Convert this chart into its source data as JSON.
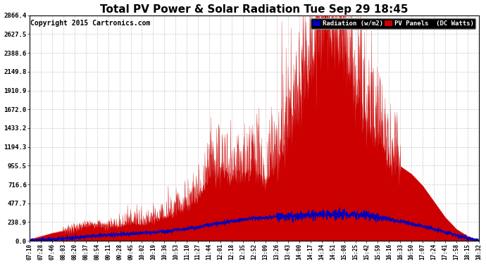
{
  "title": "Total PV Power & Solar Radiation Tue Sep 29 18:45",
  "copyright": "Copyright 2015 Cartronics.com",
  "legend_radiation": "Radiation (w/m2)",
  "legend_pv": "PV Panels  (DC Watts)",
  "legend_radiation_bg": "#0000bb",
  "legend_pv_bg": "#cc0000",
  "yticks": [
    0.0,
    238.9,
    477.7,
    716.6,
    955.5,
    1194.3,
    1433.2,
    1672.0,
    1910.9,
    2149.8,
    2388.6,
    2627.5,
    2866.4
  ],
  "ymax": 2866.4,
  "background_color": "#ffffff",
  "plot_bg": "#ffffff",
  "pv_color": "#cc0000",
  "radiation_color": "#0000bb",
  "grid_color": "#bbbbbb",
  "title_fontsize": 11,
  "copyright_fontsize": 7,
  "xtick_labels": [
    "07:10",
    "07:28",
    "07:46",
    "08:03",
    "08:20",
    "08:37",
    "08:54",
    "09:11",
    "09:28",
    "09:45",
    "10:02",
    "10:19",
    "10:36",
    "10:53",
    "11:10",
    "11:27",
    "11:44",
    "12:01",
    "12:18",
    "12:35",
    "12:52",
    "13:09",
    "13:26",
    "13:43",
    "14:00",
    "14:17",
    "14:34",
    "14:51",
    "15:08",
    "15:25",
    "15:42",
    "15:59",
    "16:16",
    "16:33",
    "16:50",
    "17:07",
    "17:24",
    "17:41",
    "17:58",
    "18:15",
    "18:32"
  ],
  "pv_values": [
    20,
    60,
    100,
    130,
    160,
    200,
    220,
    180,
    200,
    250,
    220,
    280,
    320,
    380,
    450,
    600,
    850,
    950,
    850,
    900,
    950,
    800,
    1050,
    1400,
    1900,
    2300,
    2866,
    2750,
    2600,
    2000,
    1600,
    1400,
    1100,
    950,
    850,
    700,
    500,
    300,
    150,
    60,
    10
  ],
  "rad_values": [
    5,
    10,
    20,
    30,
    40,
    55,
    65,
    75,
    85,
    90,
    100,
    110,
    120,
    135,
    155,
    175,
    200,
    230,
    250,
    270,
    285,
    295,
    305,
    310,
    320,
    330,
    335,
    340,
    340,
    330,
    320,
    300,
    275,
    250,
    220,
    185,
    150,
    110,
    70,
    35,
    5
  ]
}
